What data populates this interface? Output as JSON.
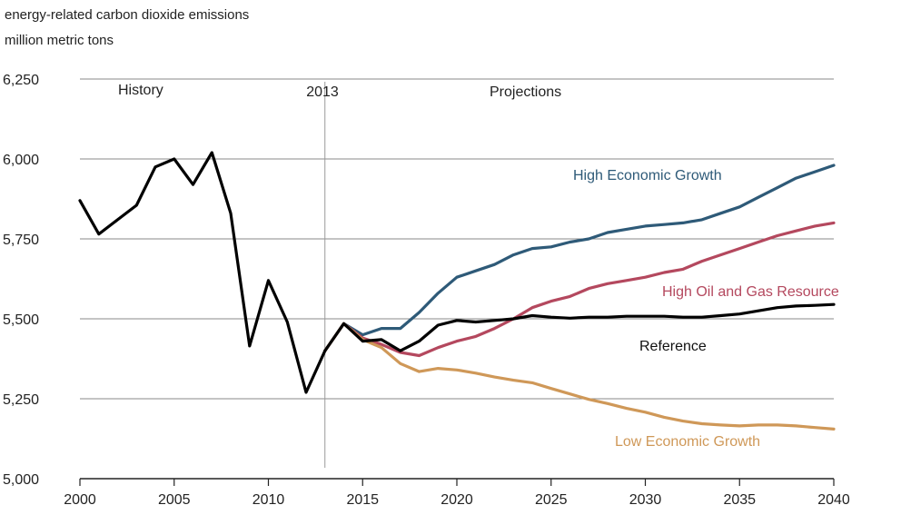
{
  "chart_data": {
    "type": "line",
    "title": "energy-related carbon dioxide emissions",
    "subtitle": "million metric tons",
    "xlabel": "",
    "ylabel": "",
    "xlim": [
      2000,
      2040
    ],
    "ylim": [
      5000,
      6250
    ],
    "x_ticks": [
      "2000",
      "2005",
      "2010",
      "2015",
      "2020",
      "2025",
      "2030",
      "2035",
      "2040"
    ],
    "y_ticks": [
      "5,000",
      "5,250",
      "5,500",
      "5,750",
      "6,000",
      "6,250"
    ],
    "grid": "horizontal",
    "annotations": [
      {
        "text": "History"
      },
      {
        "text": "2013"
      },
      {
        "text": "Projections"
      }
    ],
    "marker_year": 2013,
    "series": [
      {
        "name": "History",
        "color": "#000000",
        "points": [
          [
            2000,
            5870
          ],
          [
            2001,
            5765
          ],
          [
            2002,
            5810
          ],
          [
            2003,
            5855
          ],
          [
            2004,
            5975
          ],
          [
            2005,
            6000
          ],
          [
            2006,
            5920
          ],
          [
            2007,
            6020
          ],
          [
            2008,
            5830
          ],
          [
            2009,
            5415
          ],
          [
            2010,
            5620
          ],
          [
            2011,
            5490
          ],
          [
            2012,
            5270
          ],
          [
            2013,
            5400
          ]
        ]
      },
      {
        "name": "High Economic Growth",
        "color": "#2e5a78",
        "points": [
          [
            2013,
            5400
          ],
          [
            2014,
            5485
          ],
          [
            2015,
            5450
          ],
          [
            2016,
            5470
          ],
          [
            2017,
            5470
          ],
          [
            2018,
            5520
          ],
          [
            2019,
            5580
          ],
          [
            2020,
            5630
          ],
          [
            2021,
            5650
          ],
          [
            2022,
            5670
          ],
          [
            2023,
            5700
          ],
          [
            2024,
            5720
          ],
          [
            2025,
            5725
          ],
          [
            2026,
            5740
          ],
          [
            2027,
            5750
          ],
          [
            2028,
            5770
          ],
          [
            2029,
            5780
          ],
          [
            2030,
            5790
          ],
          [
            2031,
            5795
          ],
          [
            2032,
            5800
          ],
          [
            2033,
            5810
          ],
          [
            2034,
            5830
          ],
          [
            2035,
            5850
          ],
          [
            2036,
            5880
          ],
          [
            2037,
            5910
          ],
          [
            2038,
            5940
          ],
          [
            2039,
            5960
          ],
          [
            2040,
            5980
          ]
        ]
      },
      {
        "name": "High Oil and Gas Resource",
        "color": "#b4485e",
        "points": [
          [
            2013,
            5400
          ],
          [
            2014,
            5485
          ],
          [
            2015,
            5440
          ],
          [
            2016,
            5420
          ],
          [
            2017,
            5395
          ],
          [
            2018,
            5385
          ],
          [
            2019,
            5410
          ],
          [
            2020,
            5430
          ],
          [
            2021,
            5445
          ],
          [
            2022,
            5470
          ],
          [
            2023,
            5500
          ],
          [
            2024,
            5535
          ],
          [
            2025,
            5555
          ],
          [
            2026,
            5570
          ],
          [
            2027,
            5595
          ],
          [
            2028,
            5610
          ],
          [
            2029,
            5620
          ],
          [
            2030,
            5630
          ],
          [
            2031,
            5645
          ],
          [
            2032,
            5655
          ],
          [
            2033,
            5680
          ],
          [
            2034,
            5700
          ],
          [
            2035,
            5720
          ],
          [
            2036,
            5740
          ],
          [
            2037,
            5760
          ],
          [
            2038,
            5775
          ],
          [
            2039,
            5790
          ],
          [
            2040,
            5800
          ]
        ]
      },
      {
        "name": "Reference",
        "color": "#000000",
        "points": [
          [
            2013,
            5400
          ],
          [
            2014,
            5485
          ],
          [
            2015,
            5430
          ],
          [
            2016,
            5435
          ],
          [
            2017,
            5400
          ],
          [
            2018,
            5430
          ],
          [
            2019,
            5480
          ],
          [
            2020,
            5495
          ],
          [
            2021,
            5490
          ],
          [
            2022,
            5495
          ],
          [
            2023,
            5500
          ],
          [
            2024,
            5510
          ],
          [
            2025,
            5505
          ],
          [
            2026,
            5502
          ],
          [
            2027,
            5505
          ],
          [
            2028,
            5505
          ],
          [
            2029,
            5508
          ],
          [
            2030,
            5508
          ],
          [
            2031,
            5508
          ],
          [
            2032,
            5505
          ],
          [
            2033,
            5505
          ],
          [
            2034,
            5510
          ],
          [
            2035,
            5515
          ],
          [
            2036,
            5525
          ],
          [
            2037,
            5535
          ],
          [
            2038,
            5540
          ],
          [
            2039,
            5542
          ],
          [
            2040,
            5545
          ]
        ]
      },
      {
        "name": "Low Economic Growth",
        "color": "#cf9858",
        "points": [
          [
            2013,
            5400
          ],
          [
            2014,
            5485
          ],
          [
            2015,
            5435
          ],
          [
            2016,
            5410
          ],
          [
            2017,
            5360
          ],
          [
            2018,
            5335
          ],
          [
            2019,
            5345
          ],
          [
            2020,
            5340
          ],
          [
            2021,
            5330
          ],
          [
            2022,
            5318
          ],
          [
            2023,
            5308
          ],
          [
            2024,
            5300
          ],
          [
            2025,
            5282
          ],
          [
            2026,
            5265
          ],
          [
            2027,
            5248
          ],
          [
            2028,
            5235
          ],
          [
            2029,
            5220
          ],
          [
            2030,
            5208
          ],
          [
            2031,
            5192
          ],
          [
            2032,
            5180
          ],
          [
            2033,
            5172
          ],
          [
            2034,
            5168
          ],
          [
            2035,
            5165
          ],
          [
            2036,
            5168
          ],
          [
            2037,
            5168
          ],
          [
            2038,
            5165
          ],
          [
            2039,
            5160
          ],
          [
            2040,
            5155
          ]
        ]
      }
    ]
  }
}
